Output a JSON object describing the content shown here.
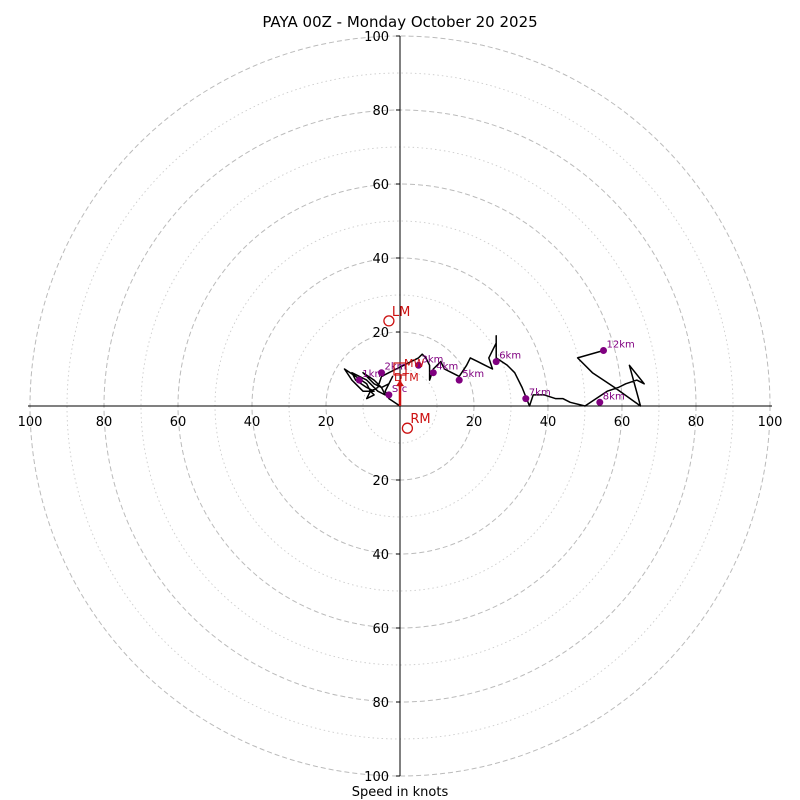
{
  "chart_data": {
    "type": "hodograph",
    "title": "PAYA 00Z - Monday October 20 2025",
    "xlabel": "Speed in knots",
    "range": [
      -100,
      100
    ],
    "ring_major": [
      20,
      40,
      60,
      80,
      100
    ],
    "ring_minor": [
      10,
      30,
      50,
      70,
      90
    ],
    "tick_labels": {
      "x_left": [
        "100",
        "80",
        "60",
        "40",
        "20"
      ],
      "x_right": [
        "20",
        "40",
        "60",
        "80",
        "100"
      ],
      "y_up": [
        "20",
        "40",
        "60",
        "80",
        "100"
      ],
      "y_down": [
        "20",
        "40",
        "60",
        "80",
        "100"
      ]
    },
    "trace": [
      [
        0,
        0
      ],
      [
        -3,
        2
      ],
      [
        -4,
        4
      ],
      [
        -3,
        6
      ],
      [
        -2,
        8
      ],
      [
        -3,
        6
      ],
      [
        -5,
        5
      ],
      [
        -7,
        6
      ],
      [
        -10,
        9
      ],
      [
        -7,
        7
      ],
      [
        -5,
        5
      ],
      [
        -4,
        3
      ],
      [
        -6,
        4
      ],
      [
        -9,
        7
      ],
      [
        -13,
        9
      ],
      [
        -12,
        7
      ],
      [
        -9,
        5
      ],
      [
        -7,
        4
      ],
      [
        -10,
        4
      ],
      [
        -13,
        7
      ],
      [
        -15,
        10
      ],
      [
        -12,
        8
      ],
      [
        -9,
        6
      ],
      [
        -8,
        4
      ],
      [
        -7,
        3
      ],
      [
        -9,
        2
      ],
      [
        -8,
        4
      ],
      [
        -6,
        5
      ],
      [
        -5,
        8
      ],
      [
        -3,
        9
      ],
      [
        -1,
        10
      ],
      [
        1,
        11
      ],
      [
        3,
        12
      ],
      [
        5,
        13
      ],
      [
        6,
        14
      ],
      [
        7,
        13
      ],
      [
        8,
        11
      ],
      [
        8,
        7
      ],
      [
        9,
        10
      ],
      [
        11,
        12
      ],
      [
        12,
        10
      ],
      [
        14,
        9
      ],
      [
        16,
        8
      ],
      [
        18,
        11
      ],
      [
        19,
        13
      ],
      [
        21,
        12
      ],
      [
        23,
        11
      ],
      [
        25,
        10
      ],
      [
        24,
        13
      ],
      [
        26,
        17
      ],
      [
        26,
        19
      ],
      [
        26,
        13
      ],
      [
        29,
        11
      ],
      [
        31,
        9
      ],
      [
        33,
        5
      ],
      [
        35,
        0
      ],
      [
        36,
        3
      ],
      [
        39,
        3
      ],
      [
        42,
        2
      ],
      [
        44,
        2
      ],
      [
        46,
        1
      ],
      [
        50,
        0
      ],
      [
        53,
        2
      ],
      [
        56,
        4
      ],
      [
        59,
        5
      ],
      [
        61,
        6
      ],
      [
        64,
        7
      ],
      [
        66,
        6
      ],
      [
        62,
        11
      ],
      [
        65,
        0
      ],
      [
        58,
        5
      ],
      [
        52,
        9
      ],
      [
        48,
        13
      ],
      [
        55,
        15
      ]
    ],
    "height_markers": [
      {
        "label": "1km",
        "u": -11,
        "v": 7
      },
      {
        "label": "2km",
        "u": -5,
        "v": 9
      },
      {
        "label": "3km",
        "u": 5,
        "v": 11
      },
      {
        "label": "4km",
        "u": 9,
        "v": 9
      },
      {
        "label": "5km",
        "u": 16,
        "v": 7
      },
      {
        "label": "6km",
        "u": 26,
        "v": 12
      },
      {
        "label": "7km",
        "u": 34,
        "v": 2
      },
      {
        "label": "8km",
        "u": 54,
        "v": 1
      },
      {
        "label": "12km",
        "u": 55,
        "v": 15
      }
    ],
    "sfc_marker": {
      "label": "Sfc",
      "u": -3,
      "v": 3
    },
    "storm_motion": {
      "LM": {
        "label": "LM",
        "u": -3,
        "v": 23
      },
      "RM": {
        "label": "RM",
        "u": 2,
        "v": -6
      },
      "MW": {
        "label": "MW",
        "u": 0,
        "v": 10
      },
      "DTM": {
        "label": "DTM",
        "u": 0,
        "v": 7
      }
    },
    "colors": {
      "trace": "#000000",
      "markers": "#800080",
      "storm": "#cc1111",
      "grid": "#bbbbbb",
      "axes": "#000000"
    }
  }
}
